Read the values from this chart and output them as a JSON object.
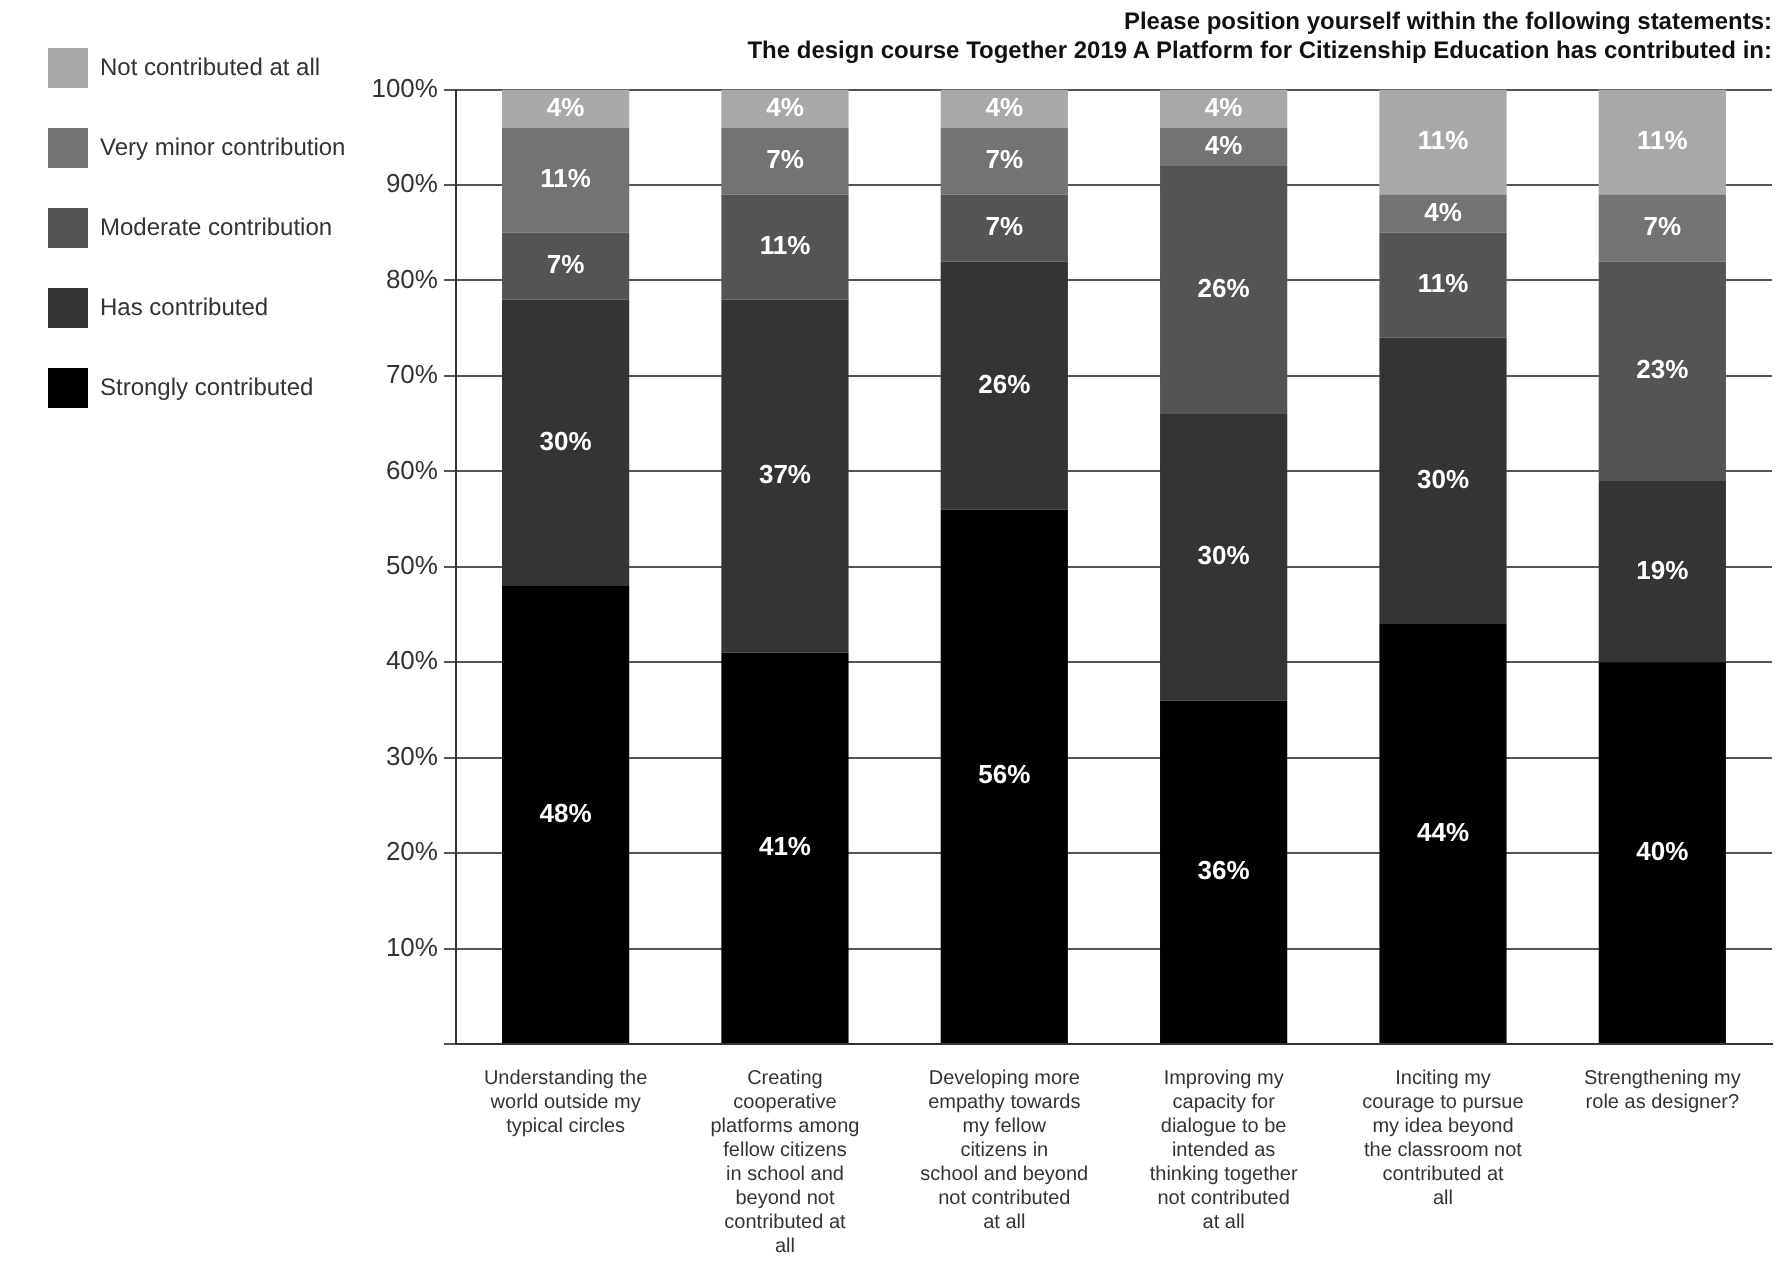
{
  "chart_data": {
    "type": "bar",
    "title": "Please position yourself within the following statements:",
    "subtitle": "The design course Together 2019 A Platform for Citizenship Education has contributed in:",
    "categories": [
      "Understanding the world outside my typical circles",
      "Creating cooperative platforms among fellow citizens in school and beyond not contributed at all",
      "Developing more empathy towards my fellow citizens in school and beyond not contributed at all",
      "Improving my capacity for dialogue to be intended as thinking together not contributed at all",
      "Inciting my courage to pursue my idea beyond the classroom not contributed at all",
      "Strengthening my role as designer?"
    ],
    "series": [
      {
        "name": "Strongly contributed",
        "color": "#000000",
        "values": [
          48,
          41,
          56,
          36,
          44,
          40
        ],
        "value_labels": [
          "48%",
          "41%",
          "56%",
          "36%",
          "44%",
          "40%"
        ]
      },
      {
        "name": "Has contributed",
        "color": "#363334",
        "values": [
          30,
          37,
          26,
          30,
          30,
          19
        ],
        "value_labels": [
          "30%",
          "37%",
          "26%",
          "30%",
          "30%",
          "19%"
        ]
      },
      {
        "name": "Moderate contribution",
        "color": "#545454",
        "values": [
          7,
          11,
          7,
          26,
          11,
          23
        ],
        "value_labels": [
          "7%",
          "11%",
          "7%",
          "26%",
          "11%",
          "23%"
        ]
      },
      {
        "name": "Very minor contribution",
        "color": "#737373",
        "values": [
          11,
          7,
          7,
          4,
          4,
          7
        ],
        "value_labels": [
          "11%",
          "7%",
          "7%",
          "4%",
          "4%",
          "7%"
        ]
      },
      {
        "name": "Not contributed at all",
        "color": "#a8a8a8",
        "values": [
          4,
          4,
          4,
          4,
          11,
          11
        ],
        "value_labels": [
          "4%",
          "4%",
          "4%",
          "4%",
          "11%",
          "11%"
        ]
      }
    ],
    "stacked": true,
    "ylim": [
      0,
      100
    ],
    "yticks": [
      {
        "value": 0,
        "label": null
      },
      {
        "value": 10,
        "label": "10%"
      },
      {
        "value": 20,
        "label": "20%"
      },
      {
        "value": 30,
        "label": "30%"
      },
      {
        "value": 40,
        "label": "40%"
      },
      {
        "value": 50,
        "label": "50%"
      },
      {
        "value": 60,
        "label": "60%"
      },
      {
        "value": 70,
        "label": "70%"
      },
      {
        "value": 80,
        "label": "80%"
      },
      {
        "value": 90,
        "label": "90%"
      },
      {
        "value": 100,
        "label": "100%"
      }
    ],
    "grid": "y",
    "legend": "left"
  }
}
